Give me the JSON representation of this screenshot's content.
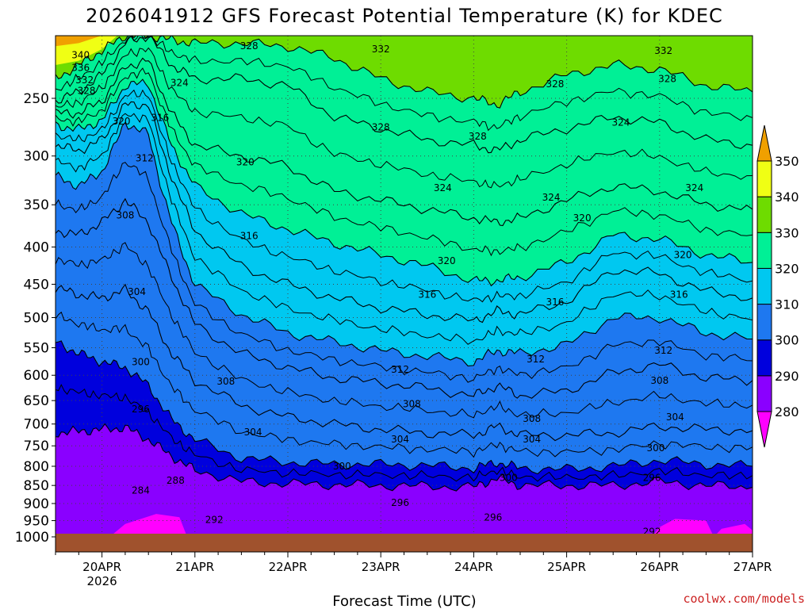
{
  "chart_data": {
    "type": "contour",
    "title": "2026041912 GFS Forecast Potential Temperature (K) for KDEC",
    "xlabel": "Forecast Time (UTC)",
    "ylabel": "",
    "credit": "coolwx.com/models",
    "x_ticks": [
      {
        "label": "20APR",
        "sublabel": "2026",
        "t": 12
      },
      {
        "label": "21APR",
        "sublabel": "",
        "t": 36
      },
      {
        "label": "22APR",
        "sublabel": "",
        "t": 60
      },
      {
        "label": "23APR",
        "sublabel": "",
        "t": 84
      },
      {
        "label": "24APR",
        "sublabel": "",
        "t": 108
      },
      {
        "label": "25APR",
        "sublabel": "",
        "t": 132
      },
      {
        "label": "26APR",
        "sublabel": "",
        "t": 156
      },
      {
        "label": "27APR",
        "sublabel": "",
        "t": 180
      }
    ],
    "x_range_hours": [
      0,
      180
    ],
    "y_ticks": [
      250,
      300,
      350,
      400,
      450,
      500,
      550,
      600,
      650,
      700,
      750,
      800,
      850,
      900,
      950,
      1000
    ],
    "y_range_hpa": [
      200,
      1000
    ],
    "colorbar": {
      "ticks": [
        280,
        290,
        300,
        310,
        320,
        330,
        340,
        350
      ],
      "colors": [
        "#ff00ff",
        "#8a00ff",
        "#0000dd",
        "#1e78f0",
        "#00c8f0",
        "#00f096",
        "#6edc00",
        "#f0ff14",
        "#f0a000"
      ]
    },
    "series": [
      {
        "level": 296,
        "points": [
          [
            0,
            720
          ],
          [
            6,
            716
          ],
          [
            12,
            712
          ],
          [
            18,
            708
          ],
          [
            24,
            735
          ],
          [
            30,
            775
          ],
          [
            36,
            810
          ],
          [
            48,
            840
          ],
          [
            60,
            845
          ],
          [
            72,
            848
          ],
          [
            84,
            850
          ],
          [
            96,
            852
          ],
          [
            108,
            855
          ],
          [
            114,
            830
          ],
          [
            120,
            850
          ],
          [
            132,
            850
          ],
          [
            144,
            850
          ],
          [
            156,
            840
          ],
          [
            168,
            850
          ],
          [
            180,
            855
          ]
        ]
      },
      {
        "level": 300,
        "points": [
          [
            0,
            540
          ],
          [
            6,
            560
          ],
          [
            12,
            575
          ],
          [
            18,
            585
          ],
          [
            24,
            620
          ],
          [
            30,
            690
          ],
          [
            36,
            735
          ],
          [
            48,
            780
          ],
          [
            60,
            790
          ],
          [
            72,
            795
          ],
          [
            84,
            795
          ],
          [
            96,
            798
          ],
          [
            108,
            805
          ],
          [
            114,
            790
          ],
          [
            120,
            805
          ],
          [
            132,
            808
          ],
          [
            144,
            800
          ],
          [
            156,
            785
          ],
          [
            168,
            795
          ],
          [
            180,
            800
          ]
        ]
      },
      {
        "level": 304,
        "points": [
          [
            0,
            455
          ],
          [
            6,
            465
          ],
          [
            12,
            470
          ],
          [
            18,
            458
          ],
          [
            24,
            490
          ],
          [
            30,
            560
          ],
          [
            36,
            610
          ],
          [
            48,
            660
          ],
          [
            60,
            685
          ],
          [
            72,
            700
          ],
          [
            84,
            712
          ],
          [
            96,
            720
          ],
          [
            108,
            725
          ],
          [
            114,
            705
          ],
          [
            120,
            725
          ],
          [
            132,
            725
          ],
          [
            144,
            720
          ],
          [
            156,
            705
          ],
          [
            168,
            712
          ],
          [
            180,
            715
          ]
        ]
      },
      {
        "level": 308,
        "points": [
          [
            0,
            380
          ],
          [
            6,
            385
          ],
          [
            12,
            370
          ],
          [
            18,
            345
          ],
          [
            24,
            370
          ],
          [
            30,
            440
          ],
          [
            36,
            510
          ],
          [
            48,
            560
          ],
          [
            60,
            585
          ],
          [
            72,
            605
          ],
          [
            84,
            615
          ],
          [
            96,
            625
          ],
          [
            108,
            640
          ],
          [
            114,
            620
          ],
          [
            120,
            640
          ],
          [
            132,
            630
          ],
          [
            144,
            595
          ],
          [
            156,
            580
          ],
          [
            168,
            605
          ],
          [
            180,
            610
          ]
        ]
      },
      {
        "level": 312,
        "points": [
          [
            0,
            320
          ],
          [
            6,
            330
          ],
          [
            12,
            315
          ],
          [
            18,
            270
          ],
          [
            24,
            280
          ],
          [
            30,
            370
          ],
          [
            36,
            450
          ],
          [
            48,
            495
          ],
          [
            60,
            525
          ],
          [
            72,
            540
          ],
          [
            84,
            555
          ],
          [
            96,
            565
          ],
          [
            108,
            575
          ],
          [
            114,
            555
          ],
          [
            120,
            560
          ],
          [
            132,
            545
          ],
          [
            144,
            500
          ],
          [
            156,
            500
          ],
          [
            168,
            525
          ],
          [
            180,
            535
          ]
        ]
      },
      {
        "level": 316,
        "points": [
          [
            0,
            290
          ],
          [
            6,
            295
          ],
          [
            12,
            285
          ],
          [
            18,
            255
          ],
          [
            24,
            255
          ],
          [
            30,
            320
          ],
          [
            36,
            380
          ],
          [
            48,
            425
          ],
          [
            60,
            450
          ],
          [
            72,
            470
          ],
          [
            84,
            485
          ],
          [
            96,
            495
          ],
          [
            108,
            505
          ],
          [
            114,
            490
          ],
          [
            120,
            495
          ],
          [
            132,
            475
          ],
          [
            144,
            430
          ],
          [
            156,
            435
          ],
          [
            168,
            460
          ],
          [
            180,
            470
          ]
        ]
      },
      {
        "level": 320,
        "points": [
          [
            0,
            272
          ],
          [
            6,
            276
          ],
          [
            12,
            268
          ],
          [
            18,
            240
          ],
          [
            24,
            238
          ],
          [
            30,
            290
          ],
          [
            36,
            330
          ],
          [
            48,
            360
          ],
          [
            60,
            378
          ],
          [
            72,
            395
          ],
          [
            84,
            410
          ],
          [
            96,
            425
          ],
          [
            108,
            445
          ],
          [
            114,
            445
          ],
          [
            120,
            440
          ],
          [
            132,
            420
          ],
          [
            144,
            385
          ],
          [
            156,
            390
          ],
          [
            168,
            410
          ],
          [
            180,
            420
          ]
        ]
      },
      {
        "level": 324,
        "points": [
          [
            0,
            262
          ],
          [
            6,
            262
          ],
          [
            12,
            252
          ],
          [
            18,
            226
          ],
          [
            24,
            222
          ],
          [
            30,
            262
          ],
          [
            36,
            290
          ],
          [
            48,
            300
          ],
          [
            60,
            310
          ],
          [
            72,
            335
          ],
          [
            84,
            345
          ],
          [
            96,
            355
          ],
          [
            108,
            365
          ],
          [
            114,
            370
          ],
          [
            120,
            365
          ],
          [
            132,
            345
          ],
          [
            144,
            330
          ],
          [
            156,
            335
          ],
          [
            168,
            350
          ],
          [
            180,
            355
          ]
        ]
      },
      {
        "level": 328,
        "points": [
          [
            0,
            252
          ],
          [
            6,
            245
          ],
          [
            12,
            232
          ],
          [
            18,
            210
          ],
          [
            24,
            205
          ],
          [
            30,
            225
          ],
          [
            36,
            235
          ],
          [
            48,
            235
          ],
          [
            60,
            240
          ],
          [
            72,
            265
          ],
          [
            84,
            275
          ],
          [
            96,
            285
          ],
          [
            108,
            290
          ],
          [
            114,
            295
          ],
          [
            120,
            285
          ],
          [
            132,
            275
          ],
          [
            144,
            265
          ],
          [
            156,
            270
          ],
          [
            168,
            285
          ],
          [
            180,
            290
          ]
        ]
      },
      {
        "level": 332,
        "points": [
          [
            0,
            235
          ],
          [
            6,
            225
          ],
          [
            12,
            215
          ],
          [
            18,
            205
          ],
          [
            24,
            205
          ],
          [
            30,
            208
          ],
          [
            36,
            210
          ],
          [
            48,
            210
          ],
          [
            60,
            212
          ],
          [
            72,
            220
          ],
          [
            84,
            235
          ],
          [
            96,
            245
          ],
          [
            108,
            250
          ],
          [
            114,
            255
          ],
          [
            120,
            245
          ],
          [
            132,
            232
          ],
          [
            144,
            225
          ],
          [
            156,
            228
          ],
          [
            168,
            240
          ],
          [
            180,
            245
          ]
        ]
      }
    ],
    "contour_labels": [
      {
        "text": "340",
        "t": 6.5,
        "p": 218
      },
      {
        "text": "336",
        "t": 6.5,
        "p": 227
      },
      {
        "text": "332",
        "t": 7.5,
        "p": 236
      },
      {
        "text": "328",
        "t": 8,
        "p": 244
      },
      {
        "text": "328",
        "t": 50,
        "p": 212
      },
      {
        "text": "332",
        "t": 84,
        "p": 214
      },
      {
        "text": "332",
        "t": 157,
        "p": 215
      },
      {
        "text": "324",
        "t": 32,
        "p": 238
      },
      {
        "text": "328",
        "t": 129,
        "p": 239
      },
      {
        "text": "328",
        "t": 158,
        "p": 235
      },
      {
        "text": "320",
        "t": 17,
        "p": 269
      },
      {
        "text": "316",
        "t": 27,
        "p": 266
      },
      {
        "text": "328",
        "t": 84,
        "p": 274
      },
      {
        "text": "328",
        "t": 109,
        "p": 282
      },
      {
        "text": "324",
        "t": 146,
        "p": 270
      },
      {
        "text": "312",
        "t": 23,
        "p": 302
      },
      {
        "text": "320",
        "t": 49,
        "p": 306
      },
      {
        "text": "324",
        "t": 100,
        "p": 332
      },
      {
        "text": "324",
        "t": 128,
        "p": 342
      },
      {
        "text": "324",
        "t": 165,
        "p": 332
      },
      {
        "text": "308",
        "t": 18,
        "p": 362
      },
      {
        "text": "320",
        "t": 136,
        "p": 365
      },
      {
        "text": "316",
        "t": 50,
        "p": 386
      },
      {
        "text": "320",
        "t": 101,
        "p": 418
      },
      {
        "text": "320",
        "t": 162,
        "p": 410
      },
      {
        "text": "304",
        "t": 21,
        "p": 461
      },
      {
        "text": "316",
        "t": 96,
        "p": 465
      },
      {
        "text": "316",
        "t": 129,
        "p": 476
      },
      {
        "text": "316",
        "t": 161,
        "p": 465
      },
      {
        "text": "312",
        "t": 157,
        "p": 555
      },
      {
        "text": "312",
        "t": 124,
        "p": 570
      },
      {
        "text": "300",
        "t": 22,
        "p": 575
      },
      {
        "text": "312",
        "t": 89,
        "p": 589
      },
      {
        "text": "308",
        "t": 44,
        "p": 612
      },
      {
        "text": "308",
        "t": 156,
        "p": 610
      },
      {
        "text": "296",
        "t": 22,
        "p": 668
      },
      {
        "text": "308",
        "t": 92,
        "p": 657
      },
      {
        "text": "304",
        "t": 160,
        "p": 685
      },
      {
        "text": "308",
        "t": 123,
        "p": 688
      },
      {
        "text": "304",
        "t": 51,
        "p": 718
      },
      {
        "text": "304",
        "t": 89,
        "p": 735
      },
      {
        "text": "304",
        "t": 123,
        "p": 735
      },
      {
        "text": "300",
        "t": 155,
        "p": 755
      },
      {
        "text": "300",
        "t": 74,
        "p": 800
      },
      {
        "text": "300",
        "t": 117,
        "p": 830
      },
      {
        "text": "296",
        "t": 154,
        "p": 830
      },
      {
        "text": "288",
        "t": 31,
        "p": 837
      },
      {
        "text": "284",
        "t": 22,
        "p": 864
      },
      {
        "text": "296",
        "t": 89,
        "p": 898
      },
      {
        "text": "296",
        "t": 113,
        "p": 940
      },
      {
        "text": "292",
        "t": 41,
        "p": 948
      },
      {
        "text": "292",
        "t": 154,
        "p": 984
      }
    ]
  }
}
